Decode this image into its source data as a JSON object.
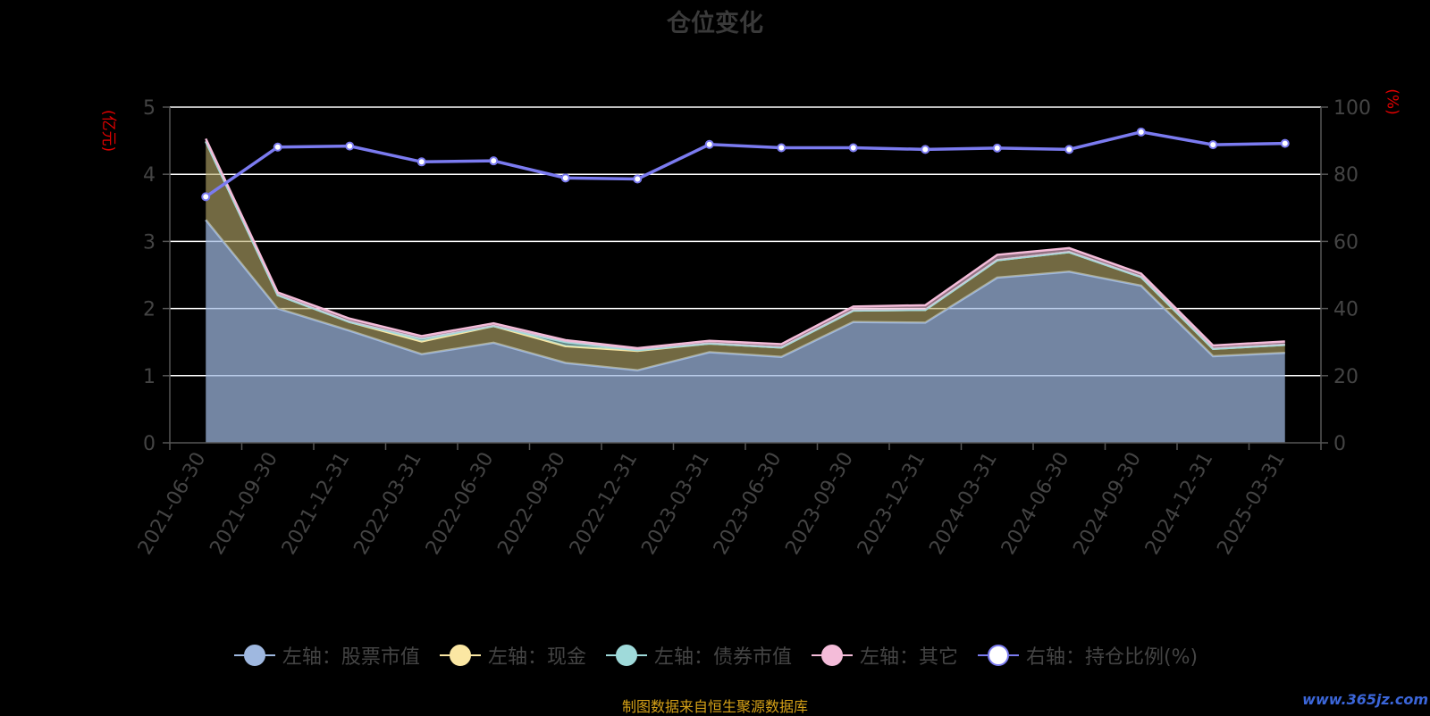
{
  "title": "仓位变化",
  "left_unit": "(亿元)",
  "right_unit": "(%)",
  "source": "制图数据来自恒生聚源数据库",
  "watermark": "www.365jz.com",
  "chart_data": {
    "type": "area",
    "categories": [
      "2021-06-30",
      "2021-09-30",
      "2021-12-31",
      "2022-03-31",
      "2022-06-30",
      "2022-09-30",
      "2022-12-31",
      "2023-03-31",
      "2023-06-30",
      "2023-09-30",
      "2023-12-31",
      "2024-03-31",
      "2024-06-30",
      "2024-09-30",
      "2024-12-31",
      "2025-03-31"
    ],
    "left_axis": {
      "ylim": [
        0,
        5
      ],
      "ticks": [
        0,
        1,
        2,
        3,
        4,
        5
      ]
    },
    "right_axis": {
      "ylim": [
        0,
        100
      ],
      "ticks": [
        0,
        20,
        40,
        60,
        80,
        100
      ]
    },
    "series": [
      {
        "name": "左轴：股票市值",
        "axis": "left",
        "type": "area",
        "stack": true,
        "color": "#9fb8e0",
        "values": [
          3.32,
          2.0,
          1.67,
          1.32,
          1.49,
          1.19,
          1.08,
          1.35,
          1.28,
          1.8,
          1.79,
          2.46,
          2.55,
          2.34,
          1.29,
          1.34
        ]
      },
      {
        "name": "左轴：现金",
        "axis": "left",
        "type": "area",
        "stack": true,
        "color": "#fbe7a3",
        "values": [
          1.17,
          0.2,
          0.13,
          0.19,
          0.25,
          0.25,
          0.29,
          0.13,
          0.14,
          0.17,
          0.19,
          0.26,
          0.29,
          0.13,
          0.11,
          0.12
        ]
      },
      {
        "name": "左轴：债券市值",
        "axis": "left",
        "type": "area",
        "stack": true,
        "color": "#9fdada",
        "values": [
          0,
          0,
          0,
          0.04,
          0,
          0.06,
          0.01,
          0,
          0,
          0,
          0,
          0,
          0,
          0,
          0,
          0
        ]
      },
      {
        "name": "左轴：其它",
        "axis": "left",
        "type": "area",
        "stack": true,
        "color": "#f4bcd9",
        "values": [
          0.04,
          0.04,
          0.05,
          0.04,
          0.04,
          0.03,
          0.03,
          0.04,
          0.05,
          0.06,
          0.07,
          0.08,
          0.06,
          0.05,
          0.05,
          0.05
        ]
      },
      {
        "name": "右轴：持仓比例(%)",
        "axis": "right",
        "type": "line",
        "color": "#7b7bf0",
        "values": [
          73.3,
          88.1,
          88.4,
          83.7,
          84.0,
          78.9,
          78.6,
          88.9,
          87.9,
          87.9,
          87.4,
          87.8,
          87.4,
          92.6,
          88.8,
          89.2
        ]
      }
    ]
  }
}
